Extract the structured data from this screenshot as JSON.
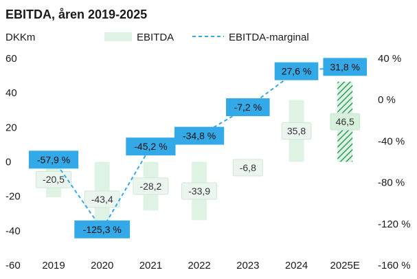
{
  "chart_data": {
    "type": "bar+line",
    "title": "EBITDA, åren 2019-2025",
    "ylabel": "DKKm",
    "categories": [
      "2019",
      "2020",
      "2021",
      "2022",
      "2023",
      "2024",
      "2025E"
    ],
    "series": [
      {
        "name": "EBITDA",
        "type": "bar",
        "axis": "left",
        "values": [
          -20.5,
          -43.4,
          -28.2,
          -33.9,
          -6.8,
          35.8,
          46.5
        ],
        "labels": [
          "-20,5",
          "-43,4",
          "-28,2",
          "-33,9",
          "-6,8",
          "35,8",
          "46,5"
        ],
        "color": "#dff3e4",
        "estimate_index": 6,
        "estimate_color": "#2e9e5b"
      },
      {
        "name": "EBITDA-marginal",
        "type": "line",
        "axis": "right",
        "values": [
          -57.9,
          -125.3,
          -45.2,
          -34.8,
          -7.2,
          27.6,
          31.8
        ],
        "labels": [
          "-57,9 %",
          "-125,3 %",
          "-45,2 %",
          "-34,8 %",
          "-7,2 %",
          "27,6 %",
          "31,8 %"
        ],
        "color": "#33a9e8"
      }
    ],
    "ylim_left": [
      -60,
      60
    ],
    "yticks_left": [
      60,
      40,
      20,
      0,
      -20,
      -40,
      -60
    ],
    "ytick_labels_left": [
      "60",
      "40",
      "20",
      "0",
      "-20",
      "-40",
      "-60"
    ],
    "ylim_right": [
      -160,
      40
    ],
    "yticks_right": [
      40,
      0,
      -40,
      -80,
      -120,
      -160
    ],
    "ytick_labels_right": [
      "40 %",
      "0 %",
      "-40 %",
      "-80 %",
      "-120 %",
      "-160 %"
    ],
    "legend": {
      "position": "top",
      "items": [
        {
          "label": "EBITDA",
          "kind": "bar"
        },
        {
          "label": "EBITDA-marginal",
          "kind": "dashed-line"
        }
      ]
    },
    "grid": false
  }
}
